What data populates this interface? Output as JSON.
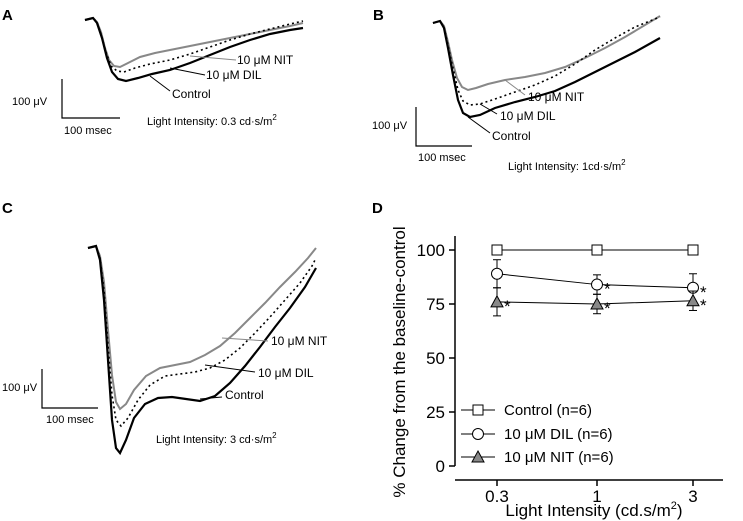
{
  "panels": {
    "A": {
      "letter": "A",
      "trace_labels": [
        "10 μM NIT",
        "10 μM DIL",
        "Control"
      ],
      "scale_amp": "100 μV",
      "scale_time": "100 msec",
      "intensity_prefix": "Light Intensity: 0.3 cd·s/m",
      "intensity_sup": "2"
    },
    "B": {
      "letter": "B",
      "trace_labels": [
        "10 μM NIT",
        "10 μM DIL",
        "Control"
      ],
      "scale_amp": "100 μV",
      "scale_time": "100 msec",
      "intensity_prefix": "Light Intensity: 1cd·s/m",
      "intensity_sup": "2"
    },
    "C": {
      "letter": "C",
      "trace_labels": [
        "10 μM NIT",
        "10 μM DIL",
        "Control"
      ],
      "scale_amp": "100 μV",
      "scale_time": "100 msec",
      "intensity_prefix": "Light Intensity: 3 cd·s/m",
      "intensity_sup": "2"
    },
    "D": {
      "letter": "D"
    }
  },
  "colors": {
    "control": "#000000",
    "nit": "#888888",
    "dil": "#000000",
    "marker_nit_fill": "#888888"
  },
  "chart_data": {
    "type": "line",
    "title": "",
    "xlabel_prefix": "Light Intensity (cd.s/m",
    "xlabel_sup": "2",
    "xlabel_suffix": ")",
    "ylabel": "% Change from the baseline-control",
    "categories": [
      "0.3",
      "1",
      "3"
    ],
    "ylim": [
      0,
      100
    ],
    "yticks": [
      "0",
      "25",
      "50",
      "75",
      "100"
    ],
    "series": [
      {
        "name": "Control (n=6)",
        "marker": "square",
        "values": [
          100,
          100,
          100
        ],
        "errors": [
          0,
          0,
          0
        ],
        "significant": [
          false,
          false,
          false
        ]
      },
      {
        "name": "10 μM DIL (n=6)",
        "marker": "circle",
        "values": [
          89,
          84,
          82.5
        ],
        "errors": [
          6.5,
          4.5,
          6.5
        ],
        "significant": [
          false,
          true,
          true
        ]
      },
      {
        "name": "10 μM NIT (n=6)",
        "marker": "triangle",
        "values": [
          76,
          75,
          76.5
        ],
        "errors": [
          6.5,
          4.5,
          4.5
        ],
        "significant": [
          true,
          true,
          true
        ]
      }
    ],
    "significance_marker": "*"
  }
}
